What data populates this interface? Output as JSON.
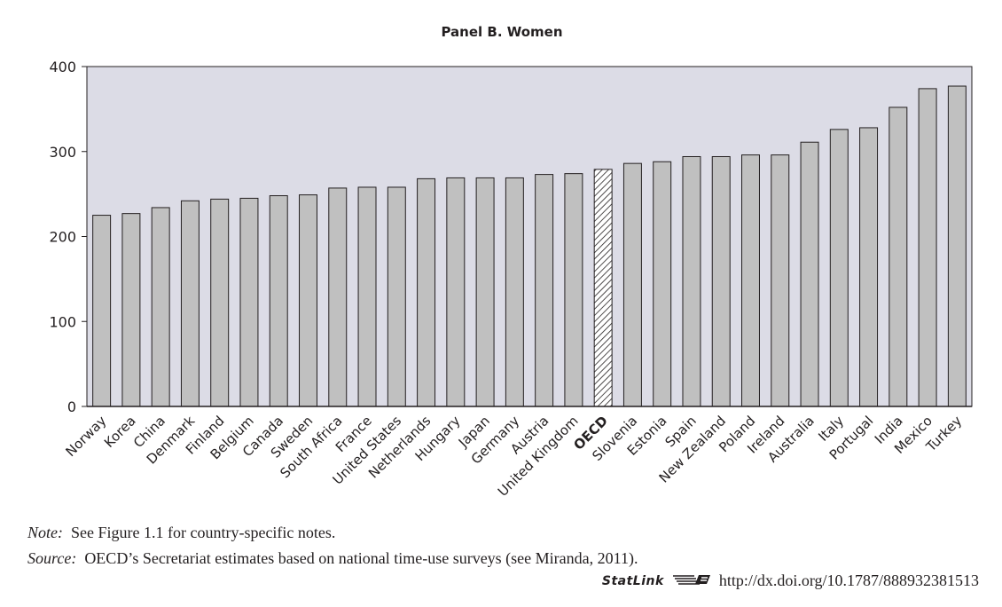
{
  "chart_data": {
    "type": "bar",
    "title": "Panel B. Women",
    "xlabel": "",
    "ylabel": "",
    "ylim": [
      0,
      400
    ],
    "yticks": [
      0,
      100,
      200,
      300,
      400
    ],
    "grid": false,
    "background": "#dcdce6",
    "bar_color": "#c0c0c0",
    "highlight_category": "OECD",
    "highlight_pattern": "diagonal-hatch",
    "categories": [
      "Norway",
      "Korea",
      "China",
      "Denmark",
      "Finland",
      "Belgium",
      "Canada",
      "Sweden",
      "South Africa",
      "France",
      "United States",
      "Netherlands",
      "Hungary",
      "Japan",
      "Germany",
      "Austria",
      "United Kingdom",
      "OECD",
      "Slovenia",
      "Estonia",
      "Spain",
      "New Zealand",
      "Poland",
      "Ireland",
      "Australia",
      "Italy",
      "Portugal",
      "India",
      "Mexico",
      "Turkey"
    ],
    "values": [
      225,
      227,
      234,
      242,
      244,
      245,
      248,
      249,
      257,
      258,
      258,
      268,
      269,
      269,
      269,
      273,
      274,
      279,
      286,
      288,
      294,
      294,
      296,
      296,
      311,
      326,
      328,
      352,
      374,
      377
    ]
  },
  "notes": {
    "note_label": "Note:",
    "note_text": "See Figure 1.1 for country-specific notes.",
    "source_label": "Source:",
    "source_text": "OECD’s Secretariat estimates based on national time-use surveys (see Miranda, 2011)."
  },
  "statlink": {
    "name": "StatLink",
    "icon": "statlink-logo-icon",
    "url": "http://dx.doi.org/10.1787/888932381513"
  }
}
